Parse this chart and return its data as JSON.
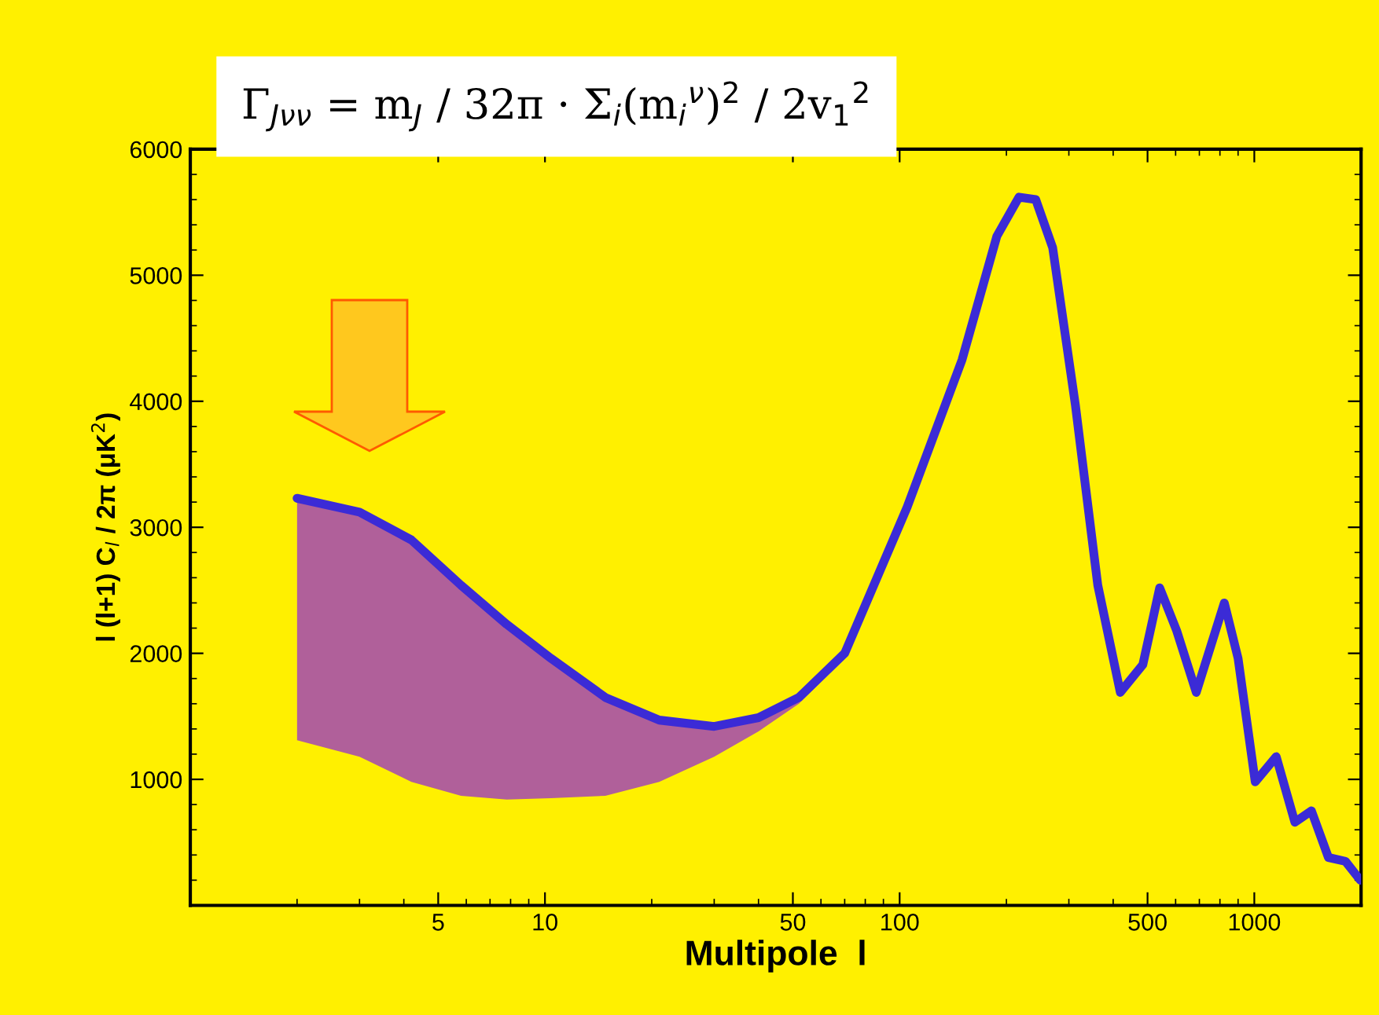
{
  "chart_data": {
    "type": "line",
    "xlabel": "Multipole  l",
    "ylabel": "l (l+1) C$_{l}$ / 2π (μK$^{2}$)",
    "annotations": [
      "Γ$_{Jνν}$ = m$_{J}$ / 32π · Σ$_{i}$(m$_{i}$$^{ν}$)$^{2}$ / 2v$_{1}$$^{2}$"
    ],
    "log": "x",
    "xlim": [
      1,
      2000
    ],
    "xticks": [
      5,
      10,
      50,
      100,
      500,
      1000
    ],
    "ylim": [
      0,
      6000
    ],
    "yticks": [
      1000,
      2000,
      3000,
      4000,
      5000,
      6000
    ],
    "grid": false,
    "legend": false,
    "series": [
      {
        "color": "#3b2bd6",
        "x": [
          2,
          3,
          4.2,
          5.8,
          7.8,
          10.4,
          14.8,
          21,
          30,
          40,
          52,
          70,
          105,
          150,
          188,
          217,
          242,
          270,
          313,
          362,
          419,
          485,
          541,
          604,
          686,
          823,
          900,
          1006,
          1153,
          1301,
          1449,
          1618,
          1806,
          1990
        ],
        "values": [
          3230,
          3120,
          2900,
          2540,
          2230,
          1960,
          1650,
          1470,
          1420,
          1490,
          1650,
          2000,
          3160,
          4330,
          5310,
          5620,
          5600,
          5220,
          3970,
          2540,
          1690,
          1910,
          2520,
          2180,
          1690,
          2400,
          1960,
          980,
          1180,
          660,
          750,
          380,
          350,
          200
        ],
        "lower": [
          1310,
          1180,
          980,
          870,
          840,
          850,
          870,
          980,
          1180,
          1380,
          1600,
          1960,
          null,
          null,
          null,
          null,
          null,
          null,
          null,
          null,
          null,
          null,
          null,
          null,
          null,
          null,
          null,
          null,
          null,
          null,
          null,
          null,
          null,
          null
        ],
        "upper": [
          3230,
          3120,
          2900,
          2540,
          2230,
          1960,
          1650,
          1470,
          1420,
          1490,
          1650,
          2000,
          null,
          null,
          null,
          null,
          null,
          null,
          null,
          null,
          null,
          null,
          null,
          null,
          null,
          null,
          null,
          null,
          null,
          null,
          null,
          null,
          null,
          null
        ]
      }
    ]
  }
}
